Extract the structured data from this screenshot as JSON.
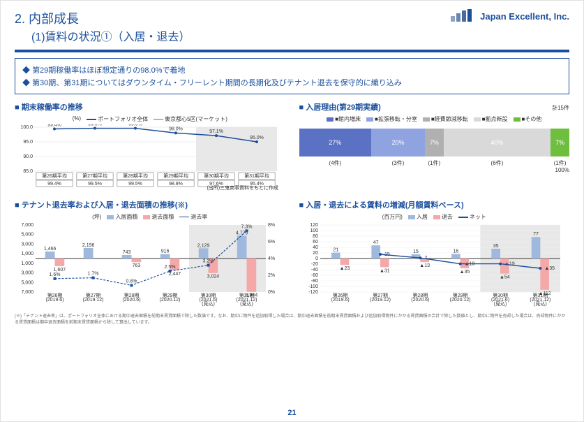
{
  "header": {
    "section_number": "2.",
    "section_title": "内部成長",
    "subsection": "(1)賃料の状況①（入居・退去）",
    "company": "Japan Excellent, Inc."
  },
  "callout": {
    "b1": "第29期稼働率はほぼ想定通りの98.0%で着地",
    "b2": "第30期、第31期についてはダウンタイム・フリーレント期間の長期化及びテナント退去を保守的に織り込み"
  },
  "chart1": {
    "title": "期末稼働率の推移",
    "unit": "(%)",
    "legend_portfolio": "ポートフォリオ全体",
    "legend_tokyo": "東京都心5区(マーケット)",
    "periods": [
      "第26期平均",
      "第27期平均",
      "第28期平均",
      "第29期平均",
      "第30期平均\n(見込)",
      "第31期平均\n(見込)"
    ],
    "dates": [
      "2018年12月末",
      "2019年12月末",
      "",
      "2020年12月末",
      "",
      "2021年12月末"
    ],
    "portfolio_values": [
      99.4,
      99.6,
      99.6,
      98.0,
      97.1,
      95.0
    ],
    "tokyo_values": [
      99.4,
      99.5,
      99.5,
      98.8,
      97.6,
      95.4
    ],
    "y_min": 85,
    "y_max": 100,
    "source_note": "(出所)三鬼商事資料をもとに作成",
    "colors": {
      "portfolio": "#1b4f9c",
      "tokyo": "#9fb8dd"
    }
  },
  "chart2": {
    "title": "入居理由(第29期実績)",
    "legend": [
      "館内増床",
      "拡張移転・分室",
      "経費節減移転",
      "拠点新設",
      "その他"
    ],
    "colors": [
      "#5b72c4",
      "#8fa3e0",
      "#b0b0b0",
      "#d9d9d9",
      "#6fbf3f"
    ],
    "percents": [
      27,
      20,
      7,
      40,
      7
    ],
    "counts": [
      "(4件)",
      "(3件)",
      "(1件)",
      "(6件)",
      "(1件)"
    ],
    "total_label": "計15件",
    "hundred": "100%"
  },
  "chart3": {
    "title": "テナント退去率および入居・退去面積の推移(※)",
    "unit_left": "(坪)",
    "legend_in": "入居面積",
    "legend_out": "退去面積",
    "legend_rate": "退去率",
    "periods": [
      "第26期\n(2019.6)",
      "第27期\n(2019.12)",
      "第28期\n(2020.6)",
      "第29期\n(2020.12)",
      "第30期\n(2021.6)\n(見込)",
      "第31期\n(2021.12)\n(見込)"
    ],
    "area_in": [
      1466,
      2196,
      743,
      916,
      2129,
      4770
    ],
    "area_out": [
      1607,
      null,
      763,
      2447,
      3024,
      6944
    ],
    "rate": [
      1.6,
      1.7,
      0.8,
      2.5,
      3.2,
      7.3
    ],
    "y_pos_max": 7000,
    "y_neg_max": 7000,
    "y_right_max": 8,
    "colors": {
      "in": "#9fb8dd",
      "out": "#f4a8a8",
      "rate": "#1b4f9c"
    },
    "footnote": "(※)「テナント退去率」は、ポートフォリオ全体における期中退去面積を前期末賃貸面積で除した数値です。なお、期中に物件を追加取得した場合は、期中退去面積を前期末賃貸面積および追加取得物件にかかる賃貸面積の合計で除した数値とし、期中に物件を売却した場合は、売却物件にかかる賃貸面積は期中退去面積を前期末賃貸面積から除して算出しています。"
  },
  "chart4": {
    "title": "入居・退去による賃料の増減(月額賃料ベース)",
    "unit": "(百万円)",
    "legend_in": "入居",
    "legend_out": "退去",
    "legend_net": "ネット",
    "periods": [
      "第26期\n(2019.6)",
      "第27期\n(2019.12)",
      "第28期\n(2020.6)",
      "第29期\n(2020.12)",
      "第30期\n(2021.6)\n(見込)",
      "第31期\n(2021.12)\n(見込)"
    ],
    "val_in": [
      21,
      47,
      15,
      16,
      35,
      77
    ],
    "val_out": [
      23,
      31,
      13,
      35,
      54,
      112
    ],
    "net": [
      null,
      15,
      2,
      -19,
      -19,
      -35
    ],
    "y_min": -120,
    "y_max": 120,
    "colors": {
      "in": "#9fb8dd",
      "out": "#f4a8a8",
      "net": "#1b4f9c"
    }
  },
  "page_number": "21"
}
